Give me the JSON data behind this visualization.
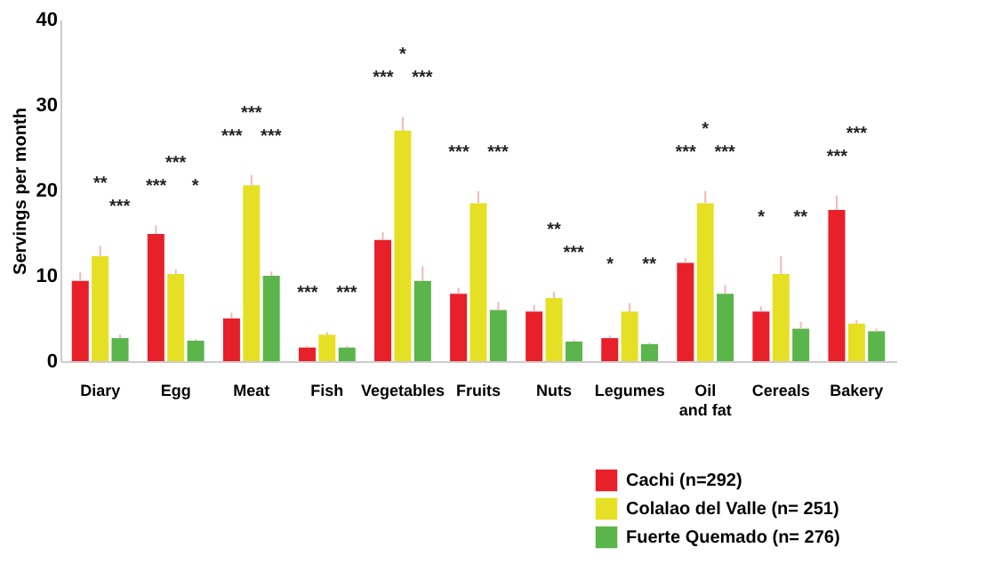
{
  "chart_data": {
    "type": "bar",
    "ylabel": "Servings per month",
    "categories": [
      "Diary",
      "Egg",
      "Meat",
      "Fish",
      "Vegetables",
      "Fruits",
      "Nuts",
      "Legumes",
      "Oil\nand fat",
      "Cereals",
      "Bakery"
    ],
    "series": [
      {
        "name": "Cachi (n=292)",
        "color": "#e8202a",
        "values": [
          9.4,
          14.9,
          5.0,
          1.6,
          14.2,
          7.9,
          5.8,
          2.7,
          11.5,
          5.8,
          17.7
        ],
        "errors": [
          [
            9.4,
            10.4
          ],
          [
            14.9,
            15.9
          ],
          [
            5.0,
            5.7
          ],
          [
            1.6,
            1.8
          ],
          [
            14.2,
            15.1
          ],
          [
            7.9,
            8.6
          ],
          [
            5.8,
            6.6
          ],
          [
            2.7,
            3.0
          ],
          [
            11.5,
            12.1
          ],
          [
            5.8,
            6.4
          ],
          [
            17.7,
            19.4
          ]
        ]
      },
      {
        "name": "Colalao del Valle (n= 251)",
        "color": "#e6e024",
        "values": [
          12.3,
          10.2,
          20.6,
          3.1,
          27.0,
          18.5,
          7.4,
          5.8,
          18.5,
          10.2,
          4.4
        ],
        "errors": [
          [
            12.3,
            13.5
          ],
          [
            10.2,
            10.7
          ],
          [
            20.6,
            21.8
          ],
          [
            3.1,
            3.4
          ],
          [
            27.0,
            28.6
          ],
          [
            18.5,
            19.9
          ],
          [
            7.4,
            8.1
          ],
          [
            5.8,
            6.8
          ],
          [
            18.5,
            19.9
          ],
          [
            10.2,
            12.3
          ],
          [
            4.4,
            4.8
          ]
        ]
      },
      {
        "name": "Fuerte Quemado (n= 276)",
        "color": "#5ab54a",
        "values": [
          2.7,
          2.4,
          10.0,
          1.6,
          9.4,
          6.0,
          2.3,
          2.0,
          7.9,
          3.8,
          3.5
        ],
        "errors": [
          [
            2.7,
            3.1
          ],
          [
            2.4,
            2.6
          ],
          [
            10.0,
            10.5
          ],
          [
            1.6,
            1.8
          ],
          [
            9.4,
            11.1
          ],
          [
            6.0,
            6.9
          ],
          [
            2.3,
            2.5
          ],
          [
            2.0,
            2.2
          ],
          [
            7.9,
            8.9
          ],
          [
            3.8,
            4.6
          ],
          [
            3.5,
            3.8
          ]
        ]
      }
    ],
    "ylim": [
      0,
      40
    ],
    "yticks": [
      0,
      10,
      20,
      30,
      40
    ],
    "grid": false,
    "legend": "bottom right",
    "annotations": [
      "**",
      "***",
      "***",
      "***",
      "*",
      "***",
      "***",
      "***",
      "***",
      "***",
      "*",
      "***",
      "***",
      "***",
      "***",
      "**",
      "***",
      "*",
      "**",
      "*",
      "***",
      "***",
      "*",
      "**",
      "***",
      "***"
    ]
  }
}
